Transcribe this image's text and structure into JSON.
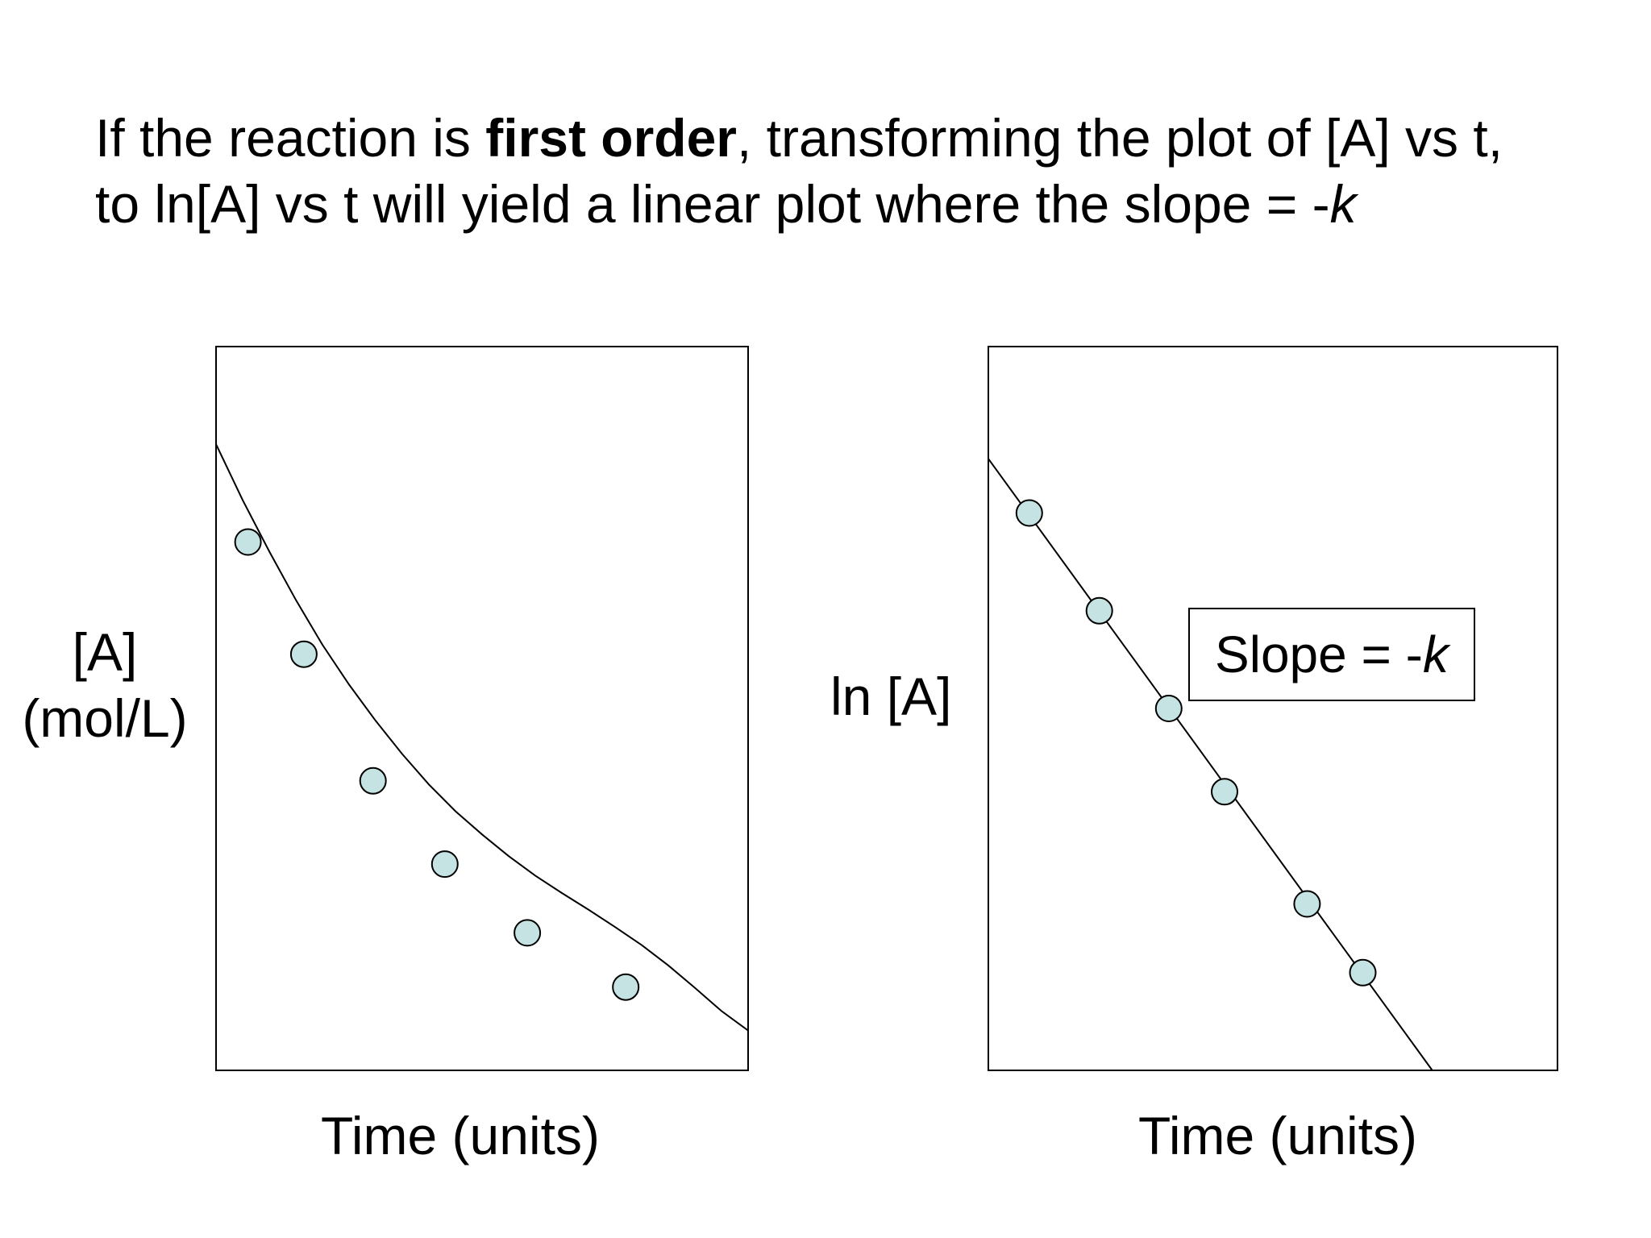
{
  "heading": {
    "part1": "If the reaction is ",
    "bold": "first order",
    "part2": ", transforming the plot of [A] vs t,",
    "line2_prefix": "to ln[A] vs t will yield a linear plot where the slope = -",
    "line2_italic": "k"
  },
  "annotation": {
    "prefix": "Slope = -",
    "italic": "k"
  },
  "chart_data": [
    {
      "type": "line",
      "xlabel": "Time (units)",
      "ylabel_line1": "[A]",
      "ylabel_line2": "(mol/L)",
      "xlim": [
        0,
        10
      ],
      "ylim": [
        0,
        10
      ],
      "curve_x": [
        0,
        0.5,
        1,
        1.5,
        2,
        2.5,
        3,
        3.5,
        4,
        4.5,
        5,
        5.5,
        6,
        6.5,
        7,
        7.5,
        8,
        8.5,
        9,
        9.5,
        10
      ],
      "curve_y": [
        8.65,
        7.88,
        7.17,
        6.5,
        5.88,
        5.33,
        4.83,
        4.37,
        3.95,
        3.58,
        3.26,
        2.96,
        2.69,
        2.45,
        2.22,
        1.98,
        1.73,
        1.45,
        1.14,
        0.82,
        0.55
      ],
      "points_x": [
        0.6,
        1.65,
        2.95,
        4.3,
        5.85,
        7.7
      ],
      "points_y": [
        7.3,
        5.75,
        4.0,
        2.85,
        1.9,
        1.15
      ],
      "marker_color": "#c5e3e3",
      "grid": false
    },
    {
      "type": "line",
      "xlabel": "Time (units)",
      "ylabel": "ln [A]",
      "xlim": [
        0,
        10
      ],
      "ylim": [
        0,
        10
      ],
      "line_x": [
        0,
        7.8
      ],
      "line_y": [
        8.45,
        0
      ],
      "points_x": [
        0.72,
        1.95,
        3.17,
        4.15,
        5.6,
        6.58
      ],
      "points_y": [
        7.7,
        6.35,
        5.0,
        3.85,
        2.3,
        1.35
      ],
      "marker_color": "#c5e3e3",
      "grid": false
    }
  ]
}
